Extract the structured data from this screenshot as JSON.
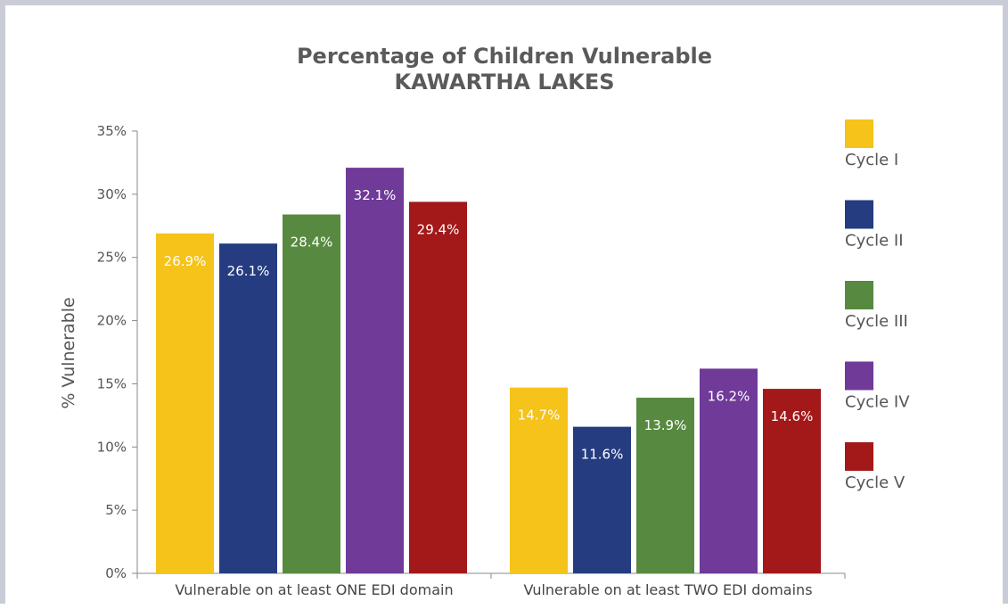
{
  "chart_data": {
    "type": "bar",
    "title": "Percentage of Children Vulnerable",
    "subtitle": "KAWARTHA LAKES",
    "ylabel": "% Vulnerable",
    "xlabel": "",
    "ylim": [
      0,
      35
    ],
    "yticks": [
      0,
      5,
      10,
      15,
      20,
      25,
      30,
      35
    ],
    "ytick_suffix": "%",
    "categories": [
      "Vulnerable on at least ONE EDI domain",
      "Vulnerable on at least TWO EDI domains"
    ],
    "series": [
      {
        "name": "Cycle I",
        "color": "#f5c319",
        "values": [
          26.9,
          14.7
        ],
        "labels": [
          "26.9%",
          "14.7%"
        ]
      },
      {
        "name": "Cycle II",
        "color": "#253c80",
        "values": [
          26.1,
          11.6
        ],
        "labels": [
          "26.1%",
          "11.6%"
        ]
      },
      {
        "name": "Cycle III",
        "color": "#578a40",
        "values": [
          28.4,
          13.9
        ],
        "labels": [
          "28.4%",
          "13.9%"
        ]
      },
      {
        "name": "Cycle IV",
        "color": "#6f3a98",
        "values": [
          32.1,
          16.2
        ],
        "labels": [
          "32.1%",
          "16.2%"
        ]
      },
      {
        "name": "Cycle V",
        "color": "#a31818",
        "values": [
          29.4,
          14.6
        ],
        "labels": [
          "29.4%",
          "14.6%"
        ]
      }
    ],
    "legend": "right",
    "grid": false
  }
}
